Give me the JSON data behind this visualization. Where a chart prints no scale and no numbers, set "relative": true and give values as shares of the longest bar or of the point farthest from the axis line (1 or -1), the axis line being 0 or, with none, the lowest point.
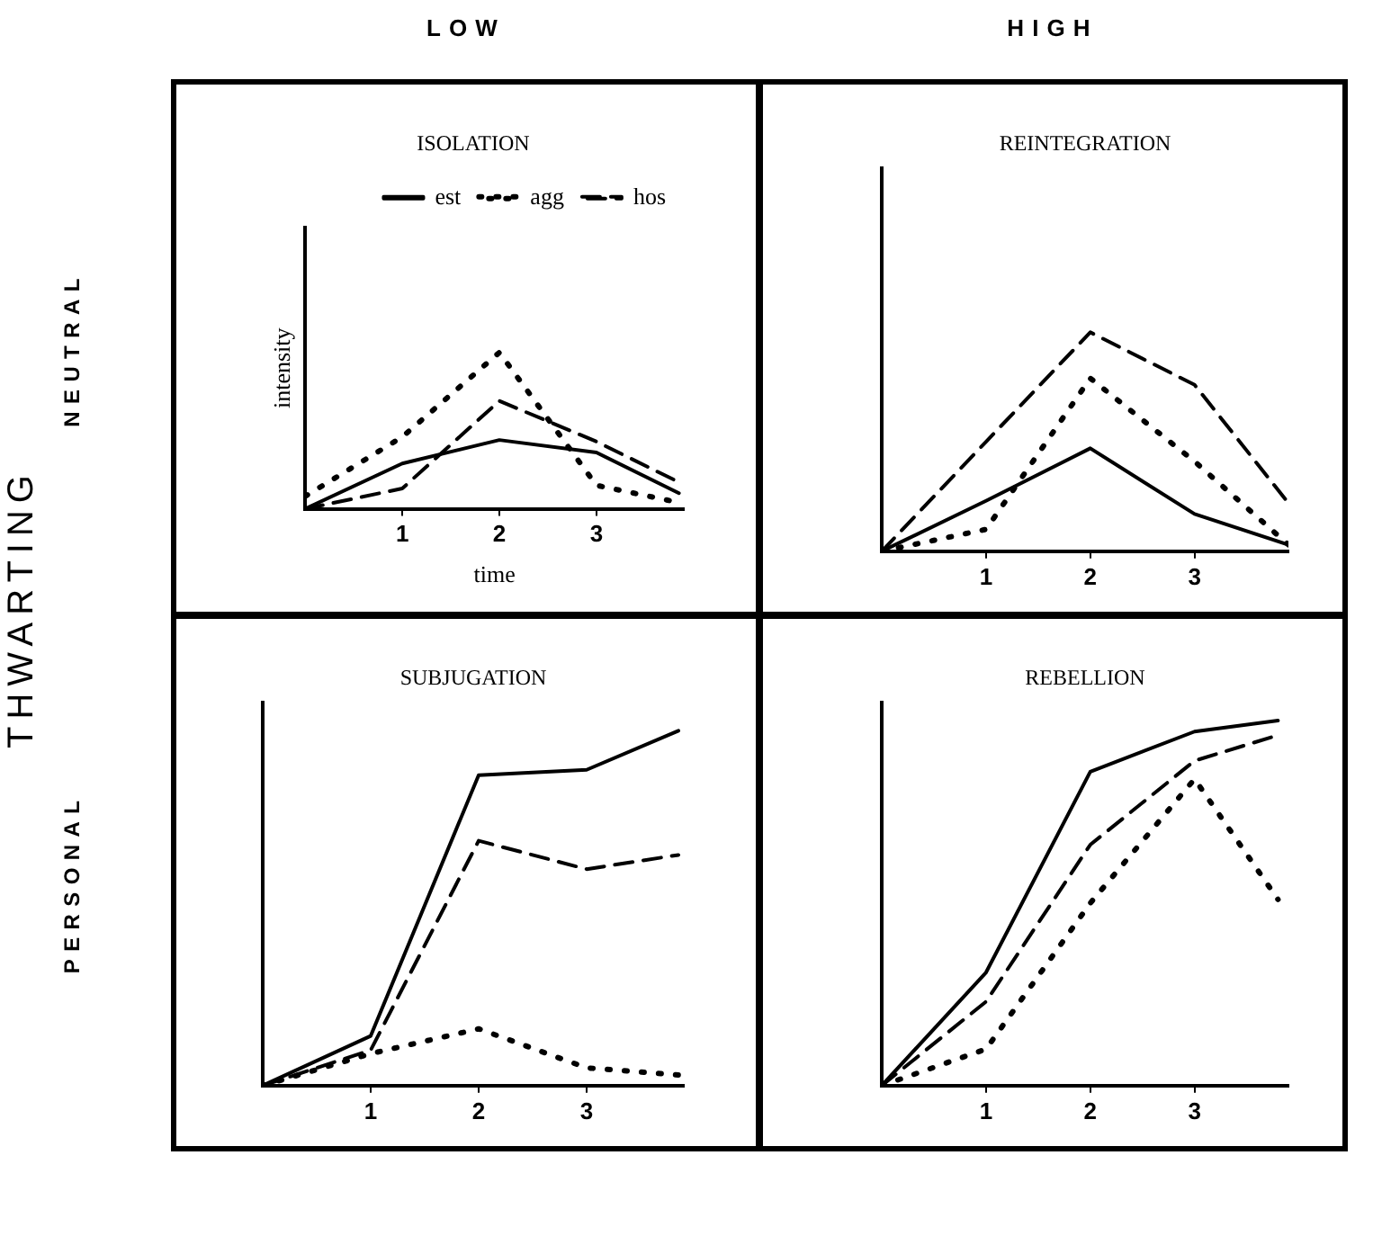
{
  "chart_data": [
    {
      "type": "line",
      "title": "ISOLATION",
      "xlabel": "time",
      "ylabel": "intensity",
      "relative": true,
      "xlim": [
        0,
        3.9
      ],
      "xticks": [
        1,
        2,
        3
      ],
      "tick_labels": "x",
      "grid": false,
      "legend": "top right",
      "marker": "none",
      "x": [
        0,
        1,
        2,
        3,
        3.85
      ],
      "annotations": [
        "LOW",
        "NEUTRAL",
        "THWARTING"
      ],
      "series": [
        {
          "name": "est",
          "color": "#000000",
          "line_style": "solid",
          "values": [
            0,
            0.29,
            0.44,
            0.36,
            0.1
          ]
        },
        {
          "name": "agg",
          "color": "#000000",
          "line_style": "dotted",
          "values": [
            0.08,
            0.46,
            1,
            0.15,
            0.04
          ]
        },
        {
          "name": "hos",
          "color": "#000000",
          "line_style": "dashed",
          "values": [
            0,
            0.13,
            0.69,
            0.43,
            0.17
          ]
        }
      ]
    },
    {
      "type": "line",
      "title": "REINTEGRATION",
      "relative": true,
      "xlim": [
        0,
        3.9
      ],
      "xticks": [
        1,
        2,
        3
      ],
      "tick_labels": "x",
      "grid": false,
      "marker": "none",
      "x": [
        0,
        1,
        2,
        3,
        3.9
      ],
      "annotations": [
        "HIGH"
      ],
      "series": [
        {
          "color": "#000000",
          "line_style": "solid",
          "values": [
            0,
            0.23,
            0.47,
            0.17,
            0.03
          ]
        },
        {
          "color": "#000000",
          "line_style": "dotted",
          "values": [
            0,
            0.1,
            0.79,
            0.41,
            0.03
          ]
        },
        {
          "color": "#000000",
          "line_style": "dashed",
          "values": [
            0,
            0.5,
            1,
            0.76,
            0.22
          ]
        }
      ]
    },
    {
      "type": "line",
      "title": "SUBJUGATION",
      "relative": true,
      "xlim": [
        0,
        3.9
      ],
      "xticks": [
        1,
        2,
        3
      ],
      "tick_labels": "x",
      "grid": false,
      "marker": "none",
      "x": [
        0,
        1,
        2,
        3,
        3.85
      ],
      "annotations": [
        "PERSONAL"
      ],
      "series": [
        {
          "color": "#000000",
          "line_style": "solid",
          "values": [
            0,
            0.14,
            0.875,
            0.89,
            1
          ]
        },
        {
          "color": "#000000",
          "line_style": "dotted",
          "values": [
            0,
            0.09,
            0.16,
            0.05,
            0.03
          ]
        },
        {
          "color": "#000000",
          "line_style": "dashed",
          "values": [
            0,
            0.1,
            0.69,
            0.61,
            0.65
          ]
        }
      ]
    },
    {
      "type": "line",
      "title": "REBELLION",
      "relative": true,
      "xlim": [
        0,
        3.9
      ],
      "xticks": [
        1,
        2,
        3
      ],
      "tick_labels": "x",
      "grid": false,
      "marker": "none",
      "x": [
        0,
        1,
        2,
        3,
        3.8
      ],
      "series": [
        {
          "color": "#000000",
          "line_style": "solid",
          "values": [
            0,
            0.31,
            0.86,
            0.97,
            1
          ]
        },
        {
          "color": "#000000",
          "line_style": "dotted",
          "values": [
            0,
            0.1,
            0.5,
            0.84,
            0.51
          ]
        },
        {
          "color": "#000000",
          "line_style": "dashed",
          "values": [
            0,
            0.23,
            0.66,
            0.89,
            0.96
          ]
        }
      ]
    }
  ]
}
